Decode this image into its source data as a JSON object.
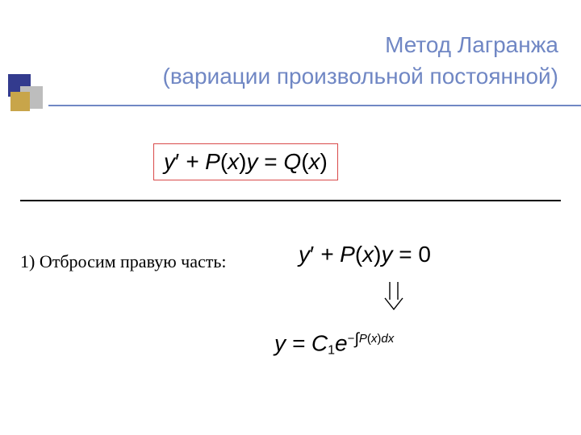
{
  "colors": {
    "title": "#7087c4",
    "rule": "#7087c4",
    "logo_navy": "#333b8e",
    "logo_gold": "#c8a54a",
    "logo_gray": "#bdbdbd",
    "box_border": "#d94a4a",
    "text": "#000000"
  },
  "title": {
    "line1": "Метод Лагранжа",
    "line2": "(вариации произвольной постоянной)"
  },
  "equations": {
    "main_html": "y<span class='upn'>′</span> + P<span class='upn'>(</span>x<span class='upn'>)</span>y <span class='upn'>=</span> Q<span class='upn'>(</span>x<span class='upn'>)</span>",
    "step_label": "1) Отбросим правую часть:",
    "homog_html": "y<span class='upn'>′</span> + P<span class='upn'>(</span>x<span class='upn'>)</span>y <span class='upn'>= 0</span>",
    "result_html": "y <span class='upn'>=</span> C<span class='sub1'>1</span>e<span class='sup-exp'>−<span class='intg'>∫</span><span class='it'>P</span>(<span class='it'>x</span>)<span class='it'>dx</span></span>"
  },
  "typography": {
    "title_fontsize": 28,
    "body_fontsize": 22,
    "eq_fontsize": 28
  }
}
